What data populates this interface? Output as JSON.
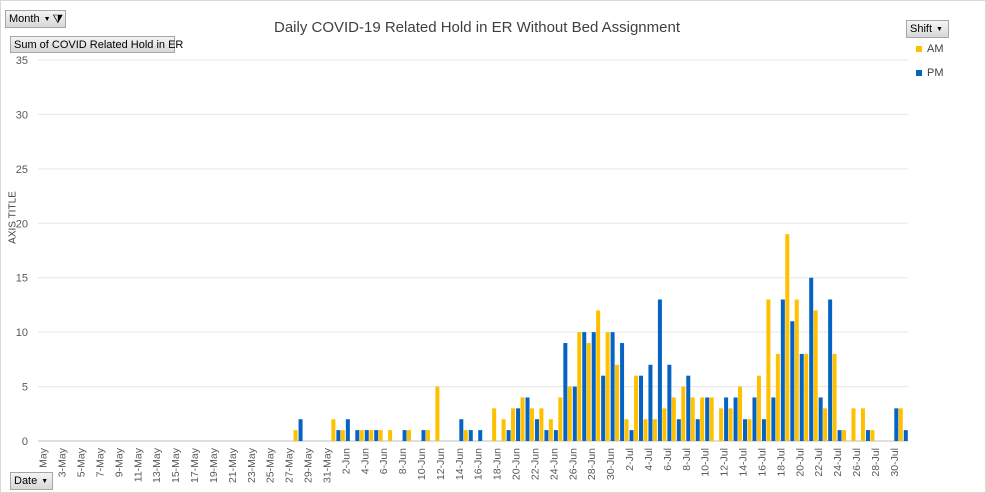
{
  "header": {
    "month_button": "Month",
    "value_button": "Sum of COVID Related Hold in ER",
    "shift_button": "Shift",
    "date_button": "Date"
  },
  "chart_data": {
    "type": "bar",
    "title": "Daily COVID-19 Related Hold in ER Without Bed Assignment",
    "xlabel": "",
    "ylabel": "AXIS TITLE",
    "ylim": [
      0,
      35
    ],
    "yticks": [
      "0",
      "5",
      "10",
      "15",
      "20",
      "25",
      "30",
      "35"
    ],
    "grid": true,
    "legend_position": "right",
    "colors": {
      "AM": "#FFC000",
      "PM": "#0563C1"
    },
    "categories": [
      "1-May",
      "2-May",
      "3-May",
      "4-May",
      "5-May",
      "6-May",
      "7-May",
      "8-May",
      "9-May",
      "10-May",
      "11-May",
      "12-May",
      "13-May",
      "14-May",
      "15-May",
      "16-May",
      "17-May",
      "18-May",
      "19-May",
      "20-May",
      "21-May",
      "22-May",
      "23-May",
      "24-May",
      "25-May",
      "26-May",
      "27-May",
      "28-May",
      "29-May",
      "30-May",
      "31-May",
      "1-Jun",
      "2-Jun",
      "3-Jun",
      "4-Jun",
      "5-Jun",
      "6-Jun",
      "7-Jun",
      "8-Jun",
      "9-Jun",
      "10-Jun",
      "11-Jun",
      "12-Jun",
      "13-Jun",
      "14-Jun",
      "15-Jun",
      "16-Jun",
      "17-Jun",
      "18-Jun",
      "19-Jun",
      "20-Jun",
      "21-Jun",
      "22-Jun",
      "23-Jun",
      "24-Jun",
      "25-Jun",
      "26-Jun",
      "27-Jun",
      "28-Jun",
      "29-Jun",
      "30-Jun",
      "1-Jul",
      "2-Jul",
      "3-Jul",
      "4-Jul",
      "5-Jul",
      "6-Jul",
      "7-Jul",
      "8-Jul",
      "9-Jul",
      "10-Jul",
      "11-Jul",
      "12-Jul",
      "13-Jul",
      "14-Jul",
      "15-Jul",
      "16-Jul",
      "17-Jul",
      "18-Jul",
      "19-Jul",
      "20-Jul",
      "21-Jul",
      "22-Jul",
      "23-Jul",
      "24-Jul",
      "25-Jul",
      "26-Jul",
      "27-Jul",
      "28-Jul",
      "29-Jul",
      "30-Jul",
      "31-Jul"
    ],
    "tick_labels": [
      "May",
      "3-May",
      "5-May",
      "7-May",
      "9-May",
      "11-May",
      "13-May",
      "15-May",
      "17-May",
      "19-May",
      "21-May",
      "23-May",
      "25-May",
      "27-May",
      "29-May",
      "31-May",
      "2-Jun",
      "4-Jun",
      "6-Jun",
      "8-Jun",
      "10-Jun",
      "12-Jun",
      "14-Jun",
      "16-Jun",
      "18-Jun",
      "20-Jun",
      "22-Jun",
      "24-Jun",
      "26-Jun",
      "28-Jun",
      "30-Jun",
      "2-Jul",
      "4-Jul",
      "6-Jul",
      "8-Jul",
      "10-Jul",
      "12-Jul",
      "14-Jul",
      "16-Jul",
      "18-Jul",
      "20-Jul",
      "22-Jul",
      "24-Jul",
      "26-Jul",
      "28-Jul",
      "30-Jul"
    ],
    "series": [
      {
        "name": "AM",
        "values": [
          0,
          0,
          0,
          0,
          0,
          0,
          0,
          0,
          0,
          0,
          0,
          0,
          0,
          0,
          0,
          0,
          0,
          0,
          0,
          0,
          0,
          0,
          0,
          0,
          0,
          0,
          0,
          1,
          0,
          0,
          0,
          2,
          1,
          0,
          1,
          1,
          1,
          1,
          0,
          1,
          0,
          1,
          5,
          0,
          0,
          1,
          0,
          0,
          3,
          2,
          3,
          4,
          3,
          3,
          2,
          4,
          5,
          10,
          9,
          12,
          10,
          7,
          2,
          6,
          2,
          2,
          3,
          4,
          5,
          4,
          4,
          4,
          3,
          3,
          5,
          2,
          6,
          13,
          8,
          19,
          13,
          8,
          12,
          3,
          8,
          1,
          3,
          3,
          1,
          0,
          0,
          3
        ]
      },
      {
        "name": "PM",
        "values": [
          0,
          0,
          0,
          0,
          0,
          0,
          0,
          0,
          0,
          0,
          0,
          0,
          0,
          0,
          0,
          0,
          0,
          0,
          0,
          0,
          0,
          0,
          0,
          0,
          0,
          0,
          0,
          2,
          0,
          0,
          0,
          1,
          2,
          1,
          1,
          1,
          0,
          0,
          1,
          0,
          1,
          0,
          0,
          0,
          2,
          1,
          1,
          0,
          0,
          1,
          3,
          4,
          2,
          1,
          1,
          9,
          5,
          10,
          10,
          6,
          10,
          9,
          1,
          6,
          7,
          13,
          7,
          2,
          6,
          2,
          4,
          0,
          4,
          4,
          2,
          4,
          2,
          4,
          13,
          11,
          8,
          15,
          4,
          13,
          1,
          0,
          0,
          1,
          0,
          0,
          3,
          1
        ]
      }
    ]
  }
}
